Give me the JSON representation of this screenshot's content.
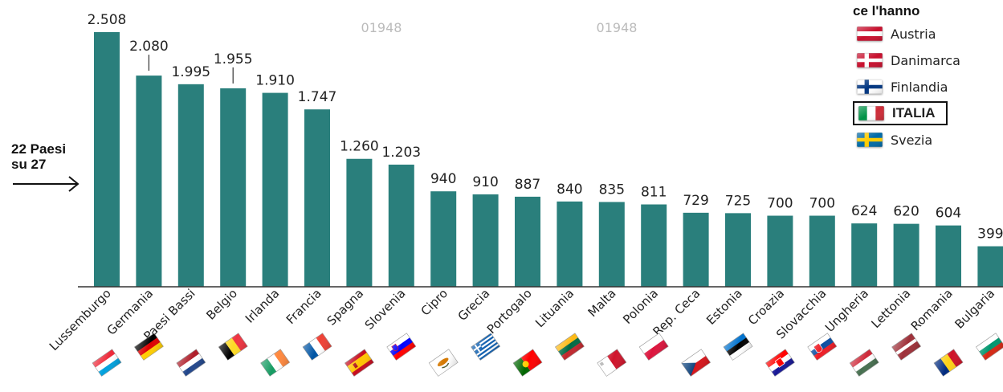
{
  "side_label": {
    "line1": "22 Paesi",
    "line2": "su 27"
  },
  "watermarks": [
    "01948",
    "01948"
  ],
  "legend": {
    "title": "ce l'hanno",
    "items": [
      {
        "label": "Austria",
        "flag": [
          "#c8102e",
          "#ffffff",
          "#c8102e"
        ],
        "highlight": false
      },
      {
        "label": "Danimarca",
        "flag": "dk",
        "highlight": false
      },
      {
        "label": "Finlandia",
        "flag": "fi",
        "highlight": false
      },
      {
        "label": "ITALIA",
        "flag": "it",
        "highlight": true
      },
      {
        "label": "Svezia",
        "flag": "se",
        "highlight": false
      }
    ]
  },
  "colors": {
    "bar": "#2a7f7c",
    "axis": "#333333"
  },
  "chart_data": {
    "type": "bar",
    "categories": [
      "Lussemburgo",
      "Germania",
      "Paesi Bassi",
      "Belgio",
      "Irlanda",
      "Francia",
      "Spagna",
      "Slovenia",
      "Cipro",
      "Grecia",
      "Portogalo",
      "Lituania",
      "Malta",
      "Polonia",
      "Rep. Ceca",
      "Estonia",
      "Croazia",
      "Slovacchia",
      "Ungheria",
      "Lettonia",
      "Romania",
      "Bulgaria"
    ],
    "values": [
      2508,
      2080,
      1995,
      1955,
      1910,
      1747,
      1260,
      1203,
      940,
      910,
      887,
      840,
      835,
      811,
      729,
      725,
      700,
      700,
      624,
      620,
      604,
      399
    ],
    "value_labels": [
      "2.508",
      "2.080",
      "1.995",
      "1.955",
      "1.910",
      "1.747",
      "1.260",
      "1.203",
      "940",
      "910",
      "887",
      "840",
      "835",
      "811",
      "729",
      "725",
      "700",
      "700",
      "624",
      "620",
      "604",
      "399"
    ],
    "flags": [
      "lu",
      "de",
      "nl",
      "be",
      "ie",
      "fr",
      "es",
      "si",
      "cy",
      "gr",
      "pt",
      "lt",
      "mt",
      "pl",
      "cz",
      "ee",
      "hr",
      "sk",
      "hu",
      "lv",
      "ro",
      "bg"
    ],
    "ylim": [
      0,
      2508
    ],
    "grid": false,
    "legend_position": "top-right"
  }
}
